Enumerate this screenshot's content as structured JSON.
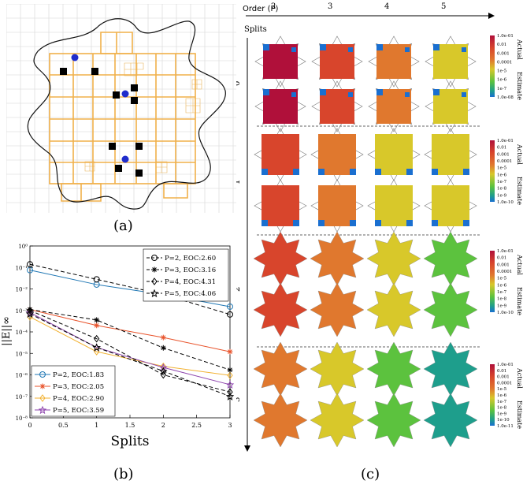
{
  "captions": {
    "a": "(a)",
    "b": "(b)",
    "c": "(c)"
  },
  "panel_c": {
    "order_label": "Order (P)",
    "splits_label": "Splits",
    "orders": [
      "2",
      "3",
      "4",
      "5"
    ],
    "splits": [
      "0",
      "1",
      "2",
      "3"
    ],
    "row_labels": [
      "Actual",
      "Estimate"
    ],
    "colorbars": [
      {
        "ticks": [
          "1.0e-01",
          "0.01",
          "0.001",
          "0.0001",
          "1e-5",
          "1e-6",
          "1e-7",
          "1.0e-08"
        ]
      },
      {
        "ticks": [
          "1.0e-01",
          "0.01",
          "0.001",
          "0.0001",
          "1e-5",
          "1e-6",
          "1e-7",
          "1e-8",
          "1e-9",
          "1.0e-10"
        ]
      },
      {
        "ticks": [
          "1.0e-01",
          "0.01",
          "0.001",
          "0.0001",
          "1e-5",
          "1e-6",
          "1e-7",
          "1e-8",
          "1e-9",
          "1.0e-10"
        ]
      },
      {
        "ticks": [
          "1.0e-01",
          "0.01",
          "0.001",
          "0.0001",
          "1e-5",
          "1e-6",
          "1e-7",
          "1e-8",
          "1e-9",
          "1e-10",
          "1.0e-11"
        ]
      }
    ],
    "colors": {
      "deep": "#b0103a",
      "red": "#d8452c",
      "orange": "#e0782e",
      "yellow": "#d8c82a",
      "green": "#5cc23e",
      "teal": "#1e9e8c",
      "blue": "#1a6fd0"
    }
  },
  "chart_data": {
    "type": "line",
    "xlabel": "Splits",
    "ylabel": "||E||∞",
    "x": [
      0,
      1,
      2,
      3
    ],
    "xticks": [
      "0",
      "0.5",
      "1",
      "1.5",
      "2",
      "2.5",
      "3"
    ],
    "yscale": "log",
    "ylim_exp": [
      -8,
      0
    ],
    "yticks": [
      "10⁰",
      "10⁻¹",
      "10⁻²",
      "10⁻³",
      "10⁻⁴",
      "10⁻⁵",
      "10⁻⁶",
      "10⁻⁷",
      "10⁻⁸"
    ],
    "actual_series": [
      {
        "name": "P=2, EOC:2.60",
        "values": [
          0.14,
          0.028,
          0.0055,
          0.00065
        ]
      },
      {
        "name": "P=3, EOC:3.16",
        "values": [
          0.0011,
          0.00036,
          1.8e-05,
          1.7e-06
        ]
      },
      {
        "name": "P=4, EOC:4.31",
        "values": [
          0.001,
          4.8e-05,
          1e-06,
          1.6e-07
        ]
      },
      {
        "name": "P=5, EOC:4.06",
        "values": [
          0.0007,
          1.9e-05,
          1.5e-06,
          1e-07
        ]
      }
    ],
    "estimate_series": [
      {
        "name": "P=2, EOC:1.83",
        "values": [
          0.075,
          0.016,
          0.0055,
          0.0015
        ],
        "color": "#1f77b4"
      },
      {
        "name": "P=3, EOC:2.05",
        "values": [
          0.0011,
          0.0002,
          5.5e-05,
          1.2e-05
        ],
        "color": "#e8522a"
      },
      {
        "name": "P=4, EOC:2.90",
        "values": [
          0.0005,
          1.2e-05,
          2.5e-06,
          9.5e-07
        ],
        "color": "#f2b233"
      },
      {
        "name": "P=5, EOC:3.59",
        "values": [
          0.0008,
          1.9e-05,
          2.2e-06,
          3.5e-07
        ],
        "color": "#8e44ad"
      }
    ]
  }
}
